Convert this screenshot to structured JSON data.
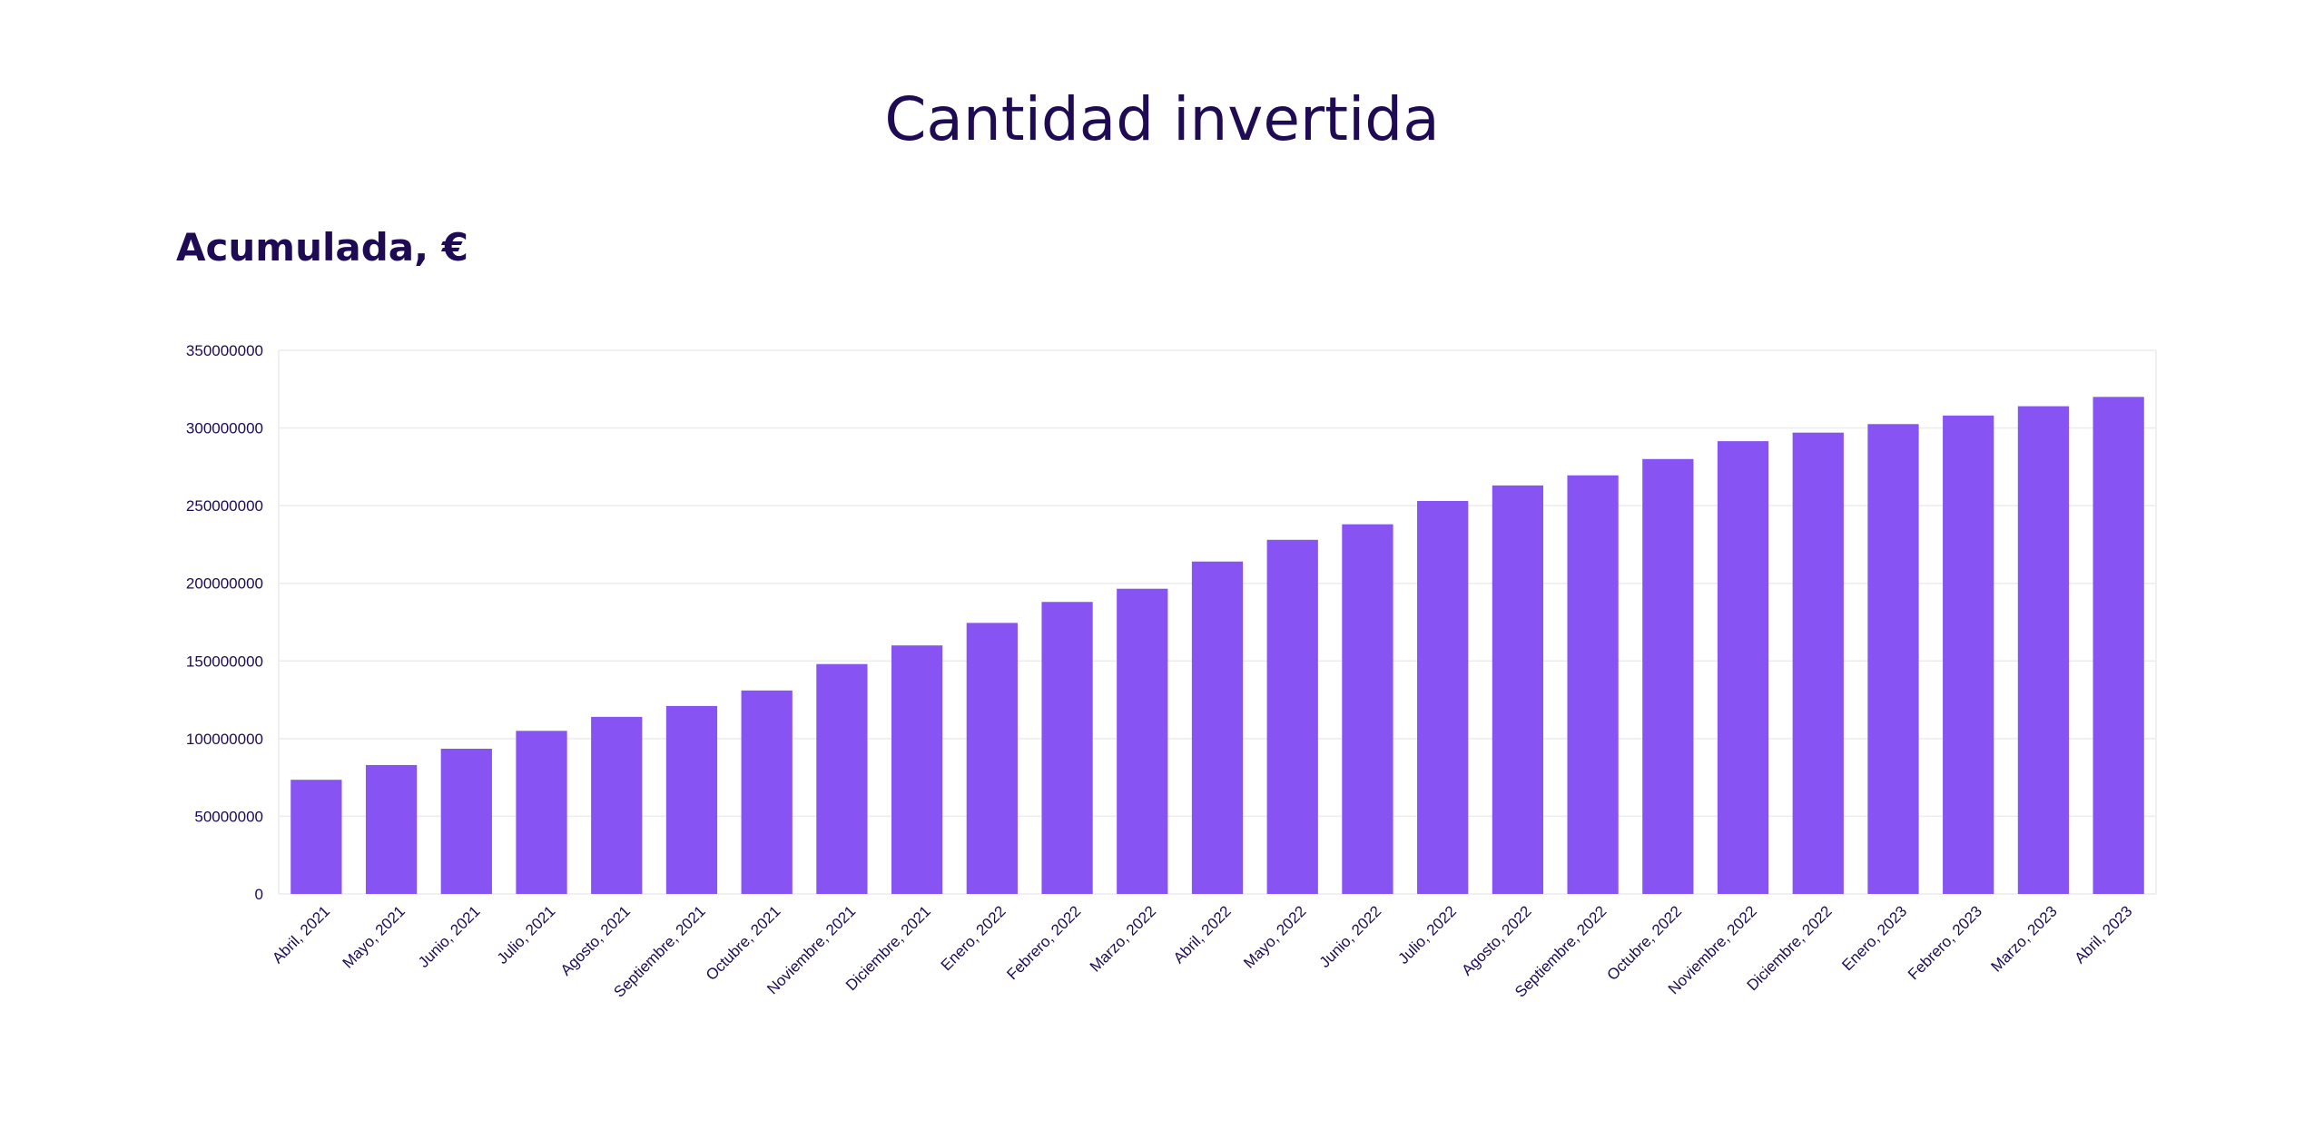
{
  "page": {
    "title": "Cantidad invertida"
  },
  "chart_data": {
    "type": "bar",
    "title": "Acumulada, €",
    "xlabel": "",
    "ylabel": "",
    "ylim": [
      0,
      350000000
    ],
    "yticks": [
      "0",
      "50000000",
      "100000000",
      "150000000",
      "200000000",
      "250000000",
      "300000000",
      "350000000"
    ],
    "grid": true,
    "colors": {
      "bar": "#8753f2",
      "text": "#1e0b54",
      "grid": "#ececec"
    },
    "categories": [
      "Abril, 2021",
      "Mayo, 2021",
      "Junio, 2021",
      "Julio, 2021",
      "Agosto, 2021",
      "Septiembre, 2021",
      "Octubre, 2021",
      "Noviembre, 2021",
      "Diciembre, 2021",
      "Enero, 2022",
      "Febrero, 2022",
      "Marzo, 2022",
      "Abril, 2022",
      "Mayo, 2022",
      "Junio, 2022",
      "Julio, 2022",
      "Agosto, 2022",
      "Septiembre, 2022",
      "Octubre, 2022",
      "Noviembre, 2022",
      "Diciembre, 2022",
      "Enero, 2023",
      "Febrero, 2023",
      "Marzo, 2023",
      "Abril, 2023"
    ],
    "values": [
      73500000,
      83000000,
      93500000,
      105000000,
      114000000,
      121000000,
      131000000,
      148000000,
      160000000,
      174500000,
      188000000,
      196500000,
      214000000,
      228000000,
      238000000,
      253000000,
      263000000,
      269500000,
      280000000,
      291500000,
      297000000,
      302500000,
      308000000,
      314000000,
      320000000
    ]
  }
}
